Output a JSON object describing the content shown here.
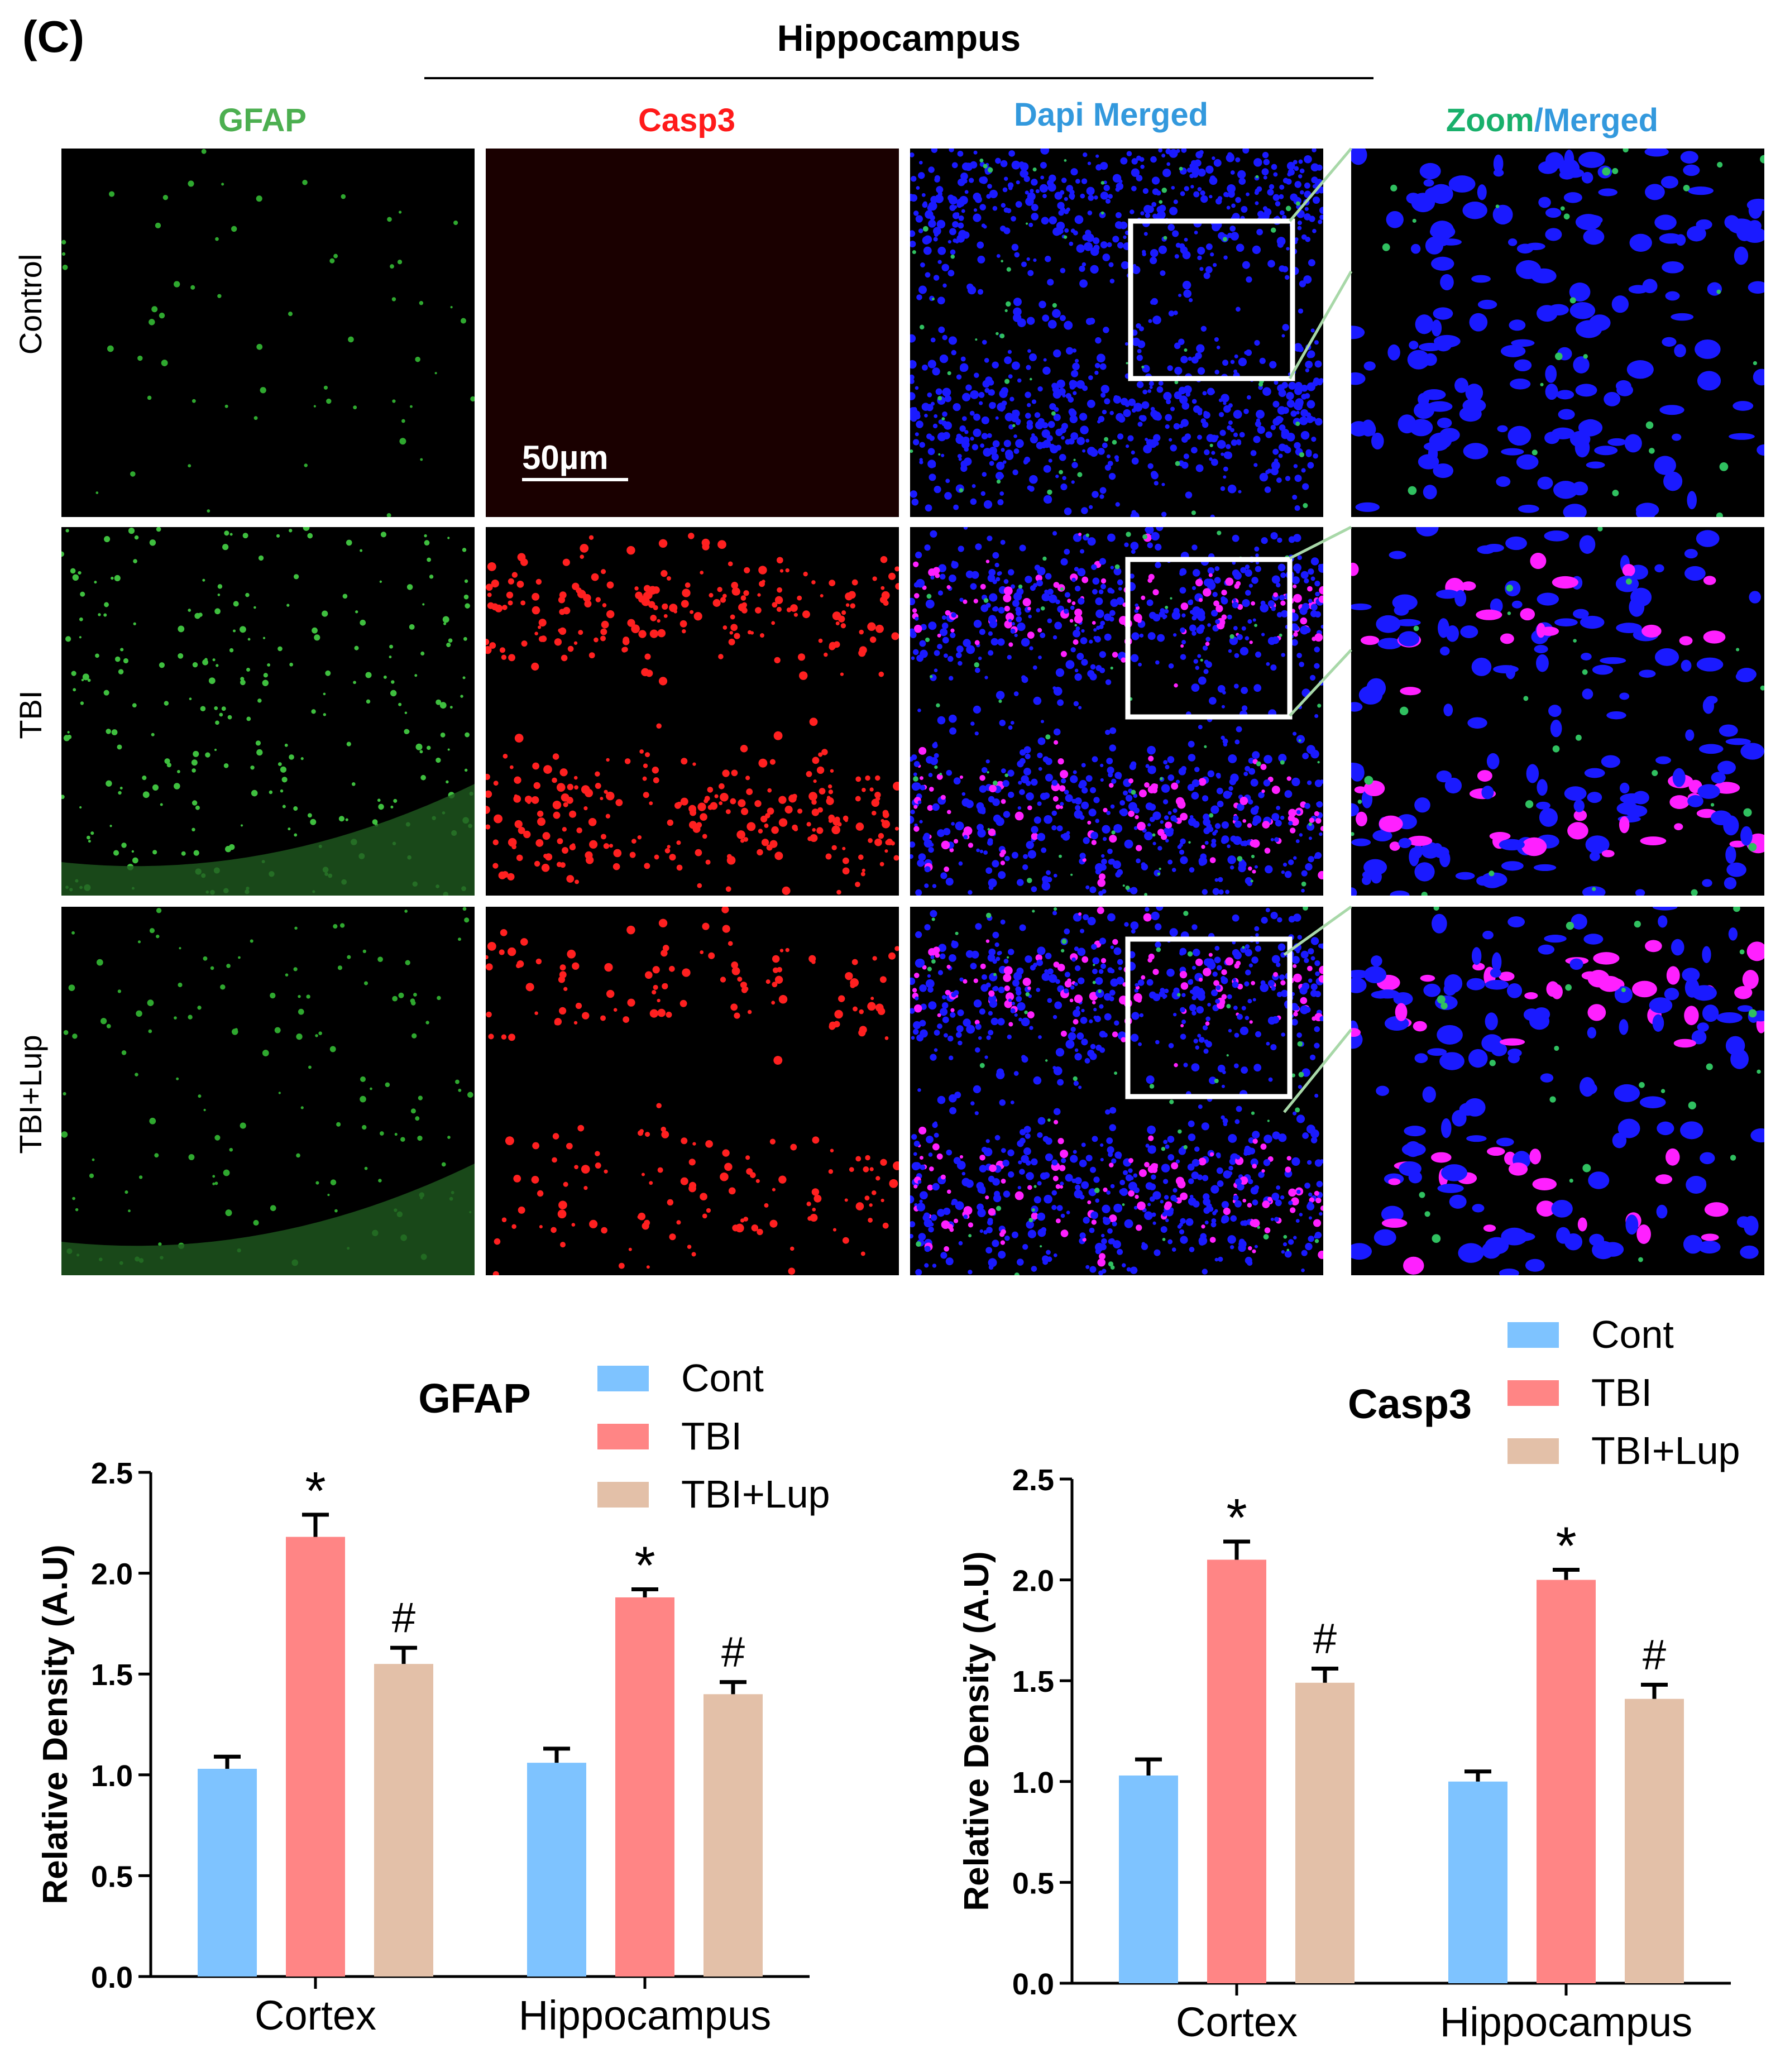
{
  "panel_letter": "(C)",
  "section_title": "Hippocampus",
  "columns": [
    {
      "label": "GFAP",
      "color": "#4caf50"
    },
    {
      "label": "Casp3",
      "color": "#ff1a1a"
    },
    {
      "label": "Dapi Merged",
      "color": "#3399dd"
    },
    {
      "label_part1": "Zoom",
      "label_part2": "/Merged",
      "color1": "#19b06b",
      "color2": "#3399dd"
    }
  ],
  "rows": [
    "Control",
    "TBI",
    "TBI+Lup"
  ],
  "scale_bar": "50µm",
  "chart_data": [
    {
      "type": "bar",
      "title": "GFAP",
      "categories": [
        "Cortex",
        "Hippocampus"
      ],
      "ylabel": "Relative Density (A.U)",
      "ylim": [
        0,
        2.5
      ],
      "yticks": [
        "0.0",
        "0.5",
        "1.0",
        "1.5",
        "2.0",
        "2.5"
      ],
      "series": [
        {
          "name": "Cont",
          "color": "#7ec3ff",
          "values": [
            1.03,
            1.06
          ],
          "errors": [
            0.06,
            0.07
          ],
          "marks": [
            "",
            ""
          ]
        },
        {
          "name": "TBI",
          "color": "#ff8585",
          "values": [
            2.18,
            1.88
          ],
          "errors": [
            0.11,
            0.04
          ],
          "marks": [
            "*",
            "*"
          ]
        },
        {
          "name": "TBI+Lup",
          "color": "#e3c0a8",
          "values": [
            1.55,
            1.4
          ],
          "errors": [
            0.08,
            0.06
          ],
          "marks": [
            "#",
            "#"
          ]
        }
      ]
    },
    {
      "type": "bar",
      "title": "Casp3",
      "categories": [
        "Cortex",
        "Hippocampus"
      ],
      "ylabel": "Relative Density (A.U)",
      "ylim": [
        0,
        2.5
      ],
      "yticks": [
        "0.0",
        "0.5",
        "1.0",
        "1.5",
        "2.0",
        "2.5"
      ],
      "series": [
        {
          "name": "Cont",
          "color": "#7ec3ff",
          "values": [
            1.03,
            1.0
          ],
          "errors": [
            0.08,
            0.05
          ],
          "marks": [
            "",
            ""
          ]
        },
        {
          "name": "TBI",
          "color": "#ff8585",
          "values": [
            2.1,
            2.0
          ],
          "errors": [
            0.09,
            0.05
          ],
          "marks": [
            "*",
            "*"
          ]
        },
        {
          "name": "TBI+Lup",
          "color": "#e3c0a8",
          "values": [
            1.49,
            1.41
          ],
          "errors": [
            0.07,
            0.07
          ],
          "marks": [
            "#",
            "#"
          ]
        }
      ]
    }
  ]
}
